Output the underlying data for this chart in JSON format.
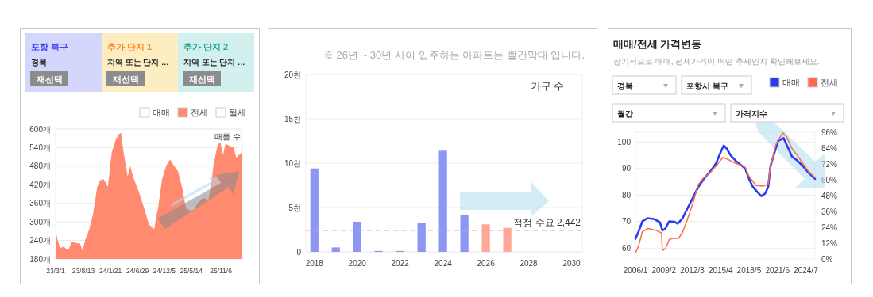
{
  "chart_data": [
    {
      "type": "area",
      "annotations": [
        "포항 북구",
        "경북",
        "재선택",
        "추가 단지 1",
        "지역 또는 단지 …",
        "재선택",
        "추가 단지 2",
        "지역 또는 단지 …",
        "재선택",
        "매물 수"
      ],
      "x": [
        "2023-03-01",
        "2023-03-12",
        "2023-03-28",
        "2023-04-20",
        "2023-05-14",
        "2023-06-06",
        "2023-06-30",
        "2023-07-24",
        "2023-08-08",
        "2023-08-24",
        "2023-09-17",
        "2023-10-10",
        "2023-11-03",
        "2023-11-19",
        "2023-12-12",
        "2024-01-05",
        "2024-01-28",
        "2024-02-21",
        "2024-03-11",
        "2024-03-23",
        "2024-04-08",
        "2024-05-02",
        "2024-05-17",
        "2024-06-02",
        "2024-06-26",
        "2024-07-19",
        "2024-08-12",
        "2024-09-04",
        "2024-10-06",
        "2024-10-22",
        "2024-10-29",
        "2024-11-22",
        "2024-12-16",
        "2025-01-08",
        "2025-02-01",
        "2025-02-24",
        "2025-03-20",
        "2025-04-13",
        "2025-05-06",
        "2025-05-30",
        "2025-06-22",
        "2025-07-24",
        "2025-08-24",
        "2025-09-09",
        "2025-09-25",
        "2025-10-18",
        "2025-11-03",
        "2025-11-19",
        "2025-12-04",
        "2025-12-28",
        "2026-01-21",
        "2026-02-05",
        "2026-02-21",
        "2026-03-13"
      ],
      "series": [
        {
          "name": "매매",
          "color": "#ffffff",
          "values": [
            null,
            null,
            null,
            null,
            null,
            null,
            null,
            null,
            null,
            null,
            null,
            null,
            null,
            null,
            null,
            null,
            null,
            null,
            null,
            null,
            null,
            null,
            null,
            null,
            null,
            null,
            null,
            null,
            null,
            null,
            null,
            null,
            null,
            null,
            null,
            null,
            null,
            null,
            null,
            null,
            null,
            null,
            null,
            null,
            null,
            null,
            null,
            null,
            null,
            null,
            null,
            null,
            null,
            null
          ]
        },
        {
          "name": "전세",
          "color": "#ff8a70",
          "values": [
            274,
            242,
            216,
            220,
            207,
            237,
            232,
            230,
            207,
            242,
            276,
            327,
            413,
            434,
            438,
            413,
            524,
            567,
            584,
            588,
            524,
            447,
            481,
            447,
            413,
            378,
            336,
            293,
            276,
            327,
            344,
            438,
            481,
            502,
            481,
            464,
            413,
            344,
            336,
            340,
            361,
            378,
            370,
            421,
            490,
            550,
            558,
            516,
            553,
            545,
            541,
            507,
            516,
            524
          ]
        },
        {
          "name": "월세",
          "color": "#ffffff",
          "values": [
            null,
            null,
            null,
            null,
            null,
            null,
            null,
            null,
            null,
            null,
            null,
            null,
            null,
            null,
            null,
            null,
            null,
            null,
            null,
            null,
            null,
            null,
            null,
            null,
            null,
            null,
            null,
            null,
            null,
            null,
            null,
            null,
            null,
            null,
            null,
            null,
            null,
            null,
            null,
            null,
            null,
            null,
            null,
            null,
            null,
            null,
            null,
            null,
            null,
            null,
            null,
            null,
            null,
            null
          ]
        }
      ],
      "xlim": [
        "2023-03-01",
        "2026-03-13"
      ],
      "xticks": [
        {
          "value": "2023-03-01",
          "label": "23/3/1"
        },
        {
          "value": "2023-08-13",
          "label": "23/8/13"
        },
        {
          "value": "2024-01-21",
          "label": "24/1/21"
        },
        {
          "value": "2024-06-29",
          "label": "24/6/29"
        },
        {
          "value": "2024-12-05",
          "label": "24/12/5"
        },
        {
          "value": "2025-05-14",
          "label": "25/5/14"
        },
        {
          "value": "2025-11-06",
          "label": "25/11/6"
        }
      ],
      "ylim": [
        180,
        600
      ],
      "yticks": [
        {
          "value": 180,
          "label": "180개"
        },
        {
          "value": 240,
          "label": "240개"
        },
        {
          "value": 300,
          "label": "300개"
        },
        {
          "value": 360,
          "label": "360개"
        },
        {
          "value": 420,
          "label": "420개"
        },
        {
          "value": 480,
          "label": "480개"
        },
        {
          "value": 540,
          "label": "540개"
        },
        {
          "value": 600,
          "label": "600개"
        }
      ],
      "grid": "y",
      "legend": "top right"
    },
    {
      "type": "bar",
      "title": "※ 26년 ~ 30년 사이 입주하는 아파트는 빨간막대 입니다.",
      "annotations": [
        "가구 수"
      ],
      "x": [
        2018,
        2019,
        2020,
        2021,
        2022,
        2023,
        2024,
        2025,
        2026,
        2027
      ],
      "values": [
        9.4,
        0.5,
        3.4,
        0.1,
        0.1,
        3.3,
        11.4,
        4.2,
        3.1,
        2.7
      ],
      "colors": [
        "#8c96f5",
        "#8c96f5",
        "#8c96f5",
        "#8c96f5",
        "#8c96f5",
        "#8c96f5",
        "#8c96f5",
        "#8c96f5",
        "#ffa898",
        "#ffa898"
      ],
      "xlim": [
        2017.6,
        2030.5
      ],
      "xticks": [
        2018,
        2020,
        2022,
        2024,
        2026,
        2028,
        2030
      ],
      "ylim": [
        0,
        20
      ],
      "yticks": [
        0,
        {
          "value": 5,
          "label": "5천"
        },
        {
          "value": 10,
          "label": "10천"
        },
        {
          "value": 15,
          "label": "15천"
        },
        {
          "value": 20,
          "label": "20천"
        }
      ],
      "ref_lines": [
        {
          "axis": "y",
          "value": 2.442,
          "label": "적정 수요 2,442",
          "color": "#ff9c8c",
          "line_style": "dashed"
        }
      ],
      "grid": "y"
    },
    {
      "type": "line",
      "title": "매매/전세 가격변동",
      "subtitle": "장기적으로 매매, 전세가격이 어떤 추세인지 확인해보세요.",
      "annotations": [
        "경북",
        "포항시 북구",
        "월간",
        "가격지수"
      ],
      "series": [
        {
          "name": "매매",
          "color": "#2a3cf0",
          "x": [
            "2006-01",
            "2006-05",
            "2006-10",
            "2007-05",
            "2008-02",
            "2008-09",
            "2008-12",
            "2009-04",
            "2009-09",
            "2010-04",
            "2010-08",
            "2011-02",
            "2011-09",
            "2012-04",
            "2012-11",
            "2013-06",
            "2014-03",
            "2014-10",
            "2015-03",
            "2015-08",
            "2015-12",
            "2016-05",
            "2016-12",
            "2017-07",
            "2017-12",
            "2018-05",
            "2018-10",
            "2019-04",
            "2019-09",
            "2020-02",
            "2020-06",
            "2020-09",
            "2021-02",
            "2021-07",
            "2022-02",
            "2022-06",
            "2023-01",
            "2023-08",
            "2024-03",
            "2024-10",
            "2025-07"
          ],
          "values": [
            63.5,
            66.2,
            70.1,
            71.3,
            70.9,
            69.7,
            66.7,
            67.4,
            70.1,
            69.9,
            69.2,
            71.1,
            75.1,
            79.1,
            83.1,
            86.1,
            89.1,
            92.0,
            95.5,
            98.7,
            97.5,
            95.0,
            92.8,
            91.2,
            90.0,
            86.1,
            83.1,
            81.1,
            79.6,
            80.6,
            83.1,
            91.0,
            96.0,
            100.5,
            101.5,
            99.0,
            94.5,
            93.0,
            91.0,
            88.6,
            86.1
          ]
        },
        {
          "name": "전세",
          "color": "#ff6a4a",
          "x": [
            "2006-01",
            "2006-05",
            "2006-10",
            "2007-05",
            "2008-04",
            "2008-11",
            "2008-12",
            "2009-04",
            "2009-09",
            "2010-02",
            "2010-09",
            "2011-02",
            "2011-09",
            "2012-04",
            "2012-11",
            "2013-06",
            "2014-03",
            "2014-10",
            "2015-07",
            "2016-01",
            "2016-10",
            "2017-07",
            "2017-12",
            "2018-05",
            "2019-02",
            "2019-11",
            "2020-06",
            "2020-09",
            "2021-04",
            "2022-01",
            "2022-06",
            "2023-01",
            "2023-08",
            "2024-03",
            "2024-10",
            "2025-07"
          ],
          "values": [
            58.2,
            60.7,
            66.2,
            67.4,
            66.7,
            65.7,
            59.2,
            59.7,
            63.2,
            63.7,
            63.7,
            65.7,
            71.1,
            77.1,
            84.1,
            86.6,
            88.6,
            91.0,
            94.2,
            93.5,
            92.2,
            91.2,
            90.5,
            87.1,
            83.6,
            83.4,
            84.1,
            91.0,
            99.0,
            103.5,
            102.0,
            97.5,
            95.0,
            92.0,
            89.1,
            86.6
          ]
        }
      ],
      "xlim": [
        "2006-01",
        "2025-07"
      ],
      "xticks": [
        {
          "value": "2006-01",
          "label": "2006/1"
        },
        {
          "value": "2009-02",
          "label": "2009/2"
        },
        {
          "value": "2012-03",
          "label": "2012/3"
        },
        {
          "value": "2015-04",
          "label": "2015/4"
        },
        {
          "value": "2018-05",
          "label": "2018/5"
        },
        {
          "value": "2021-06",
          "label": "2021/6"
        },
        {
          "value": "2024-07",
          "label": "2024/7"
        }
      ],
      "ylim": [
        55.9,
        103.7
      ],
      "yticks": [
        60,
        70,
        80,
        90,
        100
      ],
      "y2lim": [
        0,
        96
      ],
      "y2ticks": [
        {
          "value": 0,
          "label": "0%"
        },
        {
          "value": 12,
          "label": "12%"
        },
        {
          "value": 24,
          "label": "24%"
        },
        {
          "value": 36,
          "label": "36%"
        },
        {
          "value": 48,
          "label": "48%"
        },
        {
          "value": 60,
          "label": "60%"
        },
        {
          "value": 72,
          "label": "72%"
        },
        {
          "value": 84,
          "label": "84%"
        },
        {
          "value": 96,
          "label": "96%"
        }
      ],
      "grid": "y",
      "legend": "top right"
    }
  ]
}
